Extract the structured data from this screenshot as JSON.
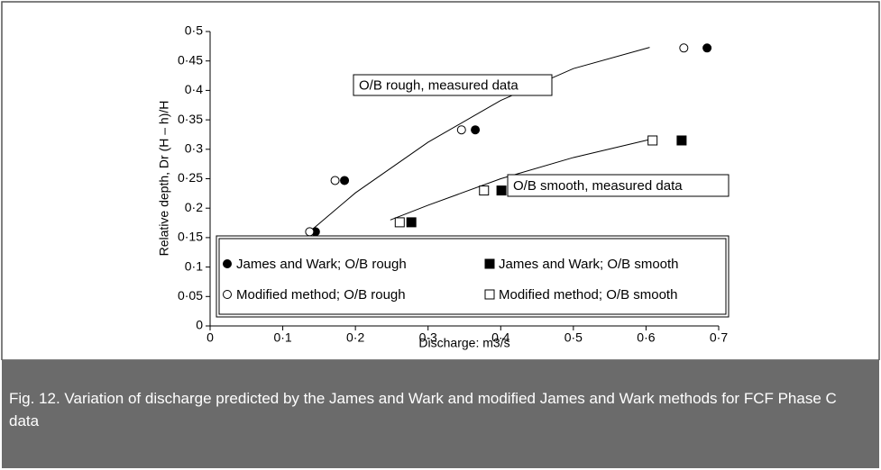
{
  "chart_data": {
    "type": "scatter",
    "xlabel": "Discharge: m3/s",
    "ylabel": "Relative depth, Dr (H – h)/H",
    "caption": "Fig. 12. Variation of discharge predicted by the James and Wark and modified James and Wark methods for FCF Phase C data",
    "xlim": [
      0,
      0.7
    ],
    "ylim": [
      0,
      0.5
    ],
    "xticks": [
      0,
      {
        "value": 0.1,
        "label": "0·1"
      },
      {
        "value": 0.2,
        "label": "0·2"
      },
      {
        "value": 0.3,
        "label": "0·3"
      },
      {
        "value": 0.4,
        "label": "0·4"
      },
      {
        "value": 0.5,
        "label": "0·5"
      },
      {
        "value": 0.6,
        "label": "0·6"
      },
      {
        "value": 0.7,
        "label": "0·7"
      }
    ],
    "yticks": [
      0,
      {
        "value": 0.05,
        "label": "0·05"
      },
      {
        "value": 0.1,
        "label": "0·1"
      },
      {
        "value": 0.15,
        "label": "0·15"
      },
      {
        "value": 0.2,
        "label": "0·2"
      },
      {
        "value": 0.25,
        "label": "0·25"
      },
      {
        "value": 0.3,
        "label": "0·3"
      },
      {
        "value": 0.35,
        "label": "0·35"
      },
      {
        "value": 0.4,
        "label": "0·4"
      },
      {
        "value": 0.45,
        "label": "0·45"
      },
      {
        "value": 0.5,
        "label": "0·5"
      }
    ],
    "series": [
      {
        "name": "James and Wark; O/B rough",
        "marker": "circle",
        "filled": true,
        "color": "#000000",
        "x": [
          0.145,
          0.185,
          0.365,
          0.684
        ],
        "values": [
          0.16,
          0.247,
          0.333,
          0.472
        ]
      },
      {
        "name": "James and Wark; O/B smooth",
        "marker": "square",
        "filled": true,
        "color": "#000000",
        "x": [
          0.277,
          0.401,
          0.649
        ],
        "values": [
          0.176,
          0.23,
          0.315
        ]
      },
      {
        "name": "Modified method; O/B rough",
        "marker": "circle",
        "filled": false,
        "color": "#000000",
        "x": [
          0.137,
          0.172,
          0.346,
          0.652
        ],
        "values": [
          0.16,
          0.247,
          0.333,
          0.472
        ]
      },
      {
        "name": "Modified method; O/B smooth",
        "marker": "square",
        "filled": false,
        "color": "#000000",
        "x": [
          0.261,
          0.377,
          0.609
        ],
        "values": [
          0.176,
          0.23,
          0.315
        ]
      }
    ],
    "curves": [
      {
        "label": "O/B rough, measured data",
        "x": [
          0.135,
          0.2,
          0.3,
          0.4,
          0.5,
          0.605
        ],
        "y": [
          0.158,
          0.226,
          0.312,
          0.383,
          0.437,
          0.473
        ]
      },
      {
        "label": "O/B smooth, measured data",
        "x": [
          0.248,
          0.3,
          0.4,
          0.5,
          0.61
        ],
        "y": [
          0.18,
          0.205,
          0.25,
          0.286,
          0.318
        ]
      }
    ]
  }
}
